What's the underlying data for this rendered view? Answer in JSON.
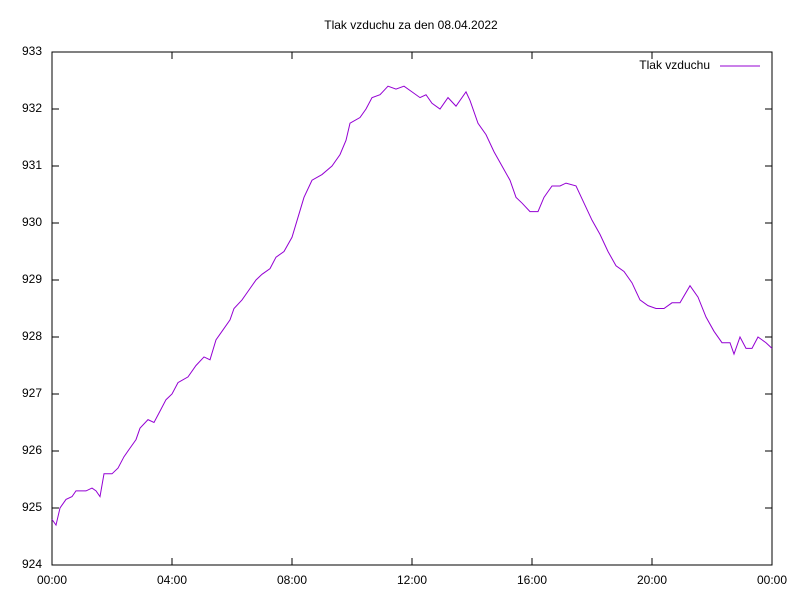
{
  "chart_data": {
    "type": "line",
    "title": "Tlak vzduchu za den 08.04.2022",
    "x": [
      0,
      8,
      16,
      28,
      40,
      48,
      68,
      80,
      88,
      96,
      104,
      120,
      132,
      144,
      156,
      168,
      176,
      192,
      204,
      216,
      228,
      240,
      252,
      272,
      288,
      304,
      316,
      328,
      340,
      356,
      364,
      380,
      392,
      408,
      420,
      436,
      448,
      464,
      480,
      492,
      504,
      520,
      540,
      560,
      576,
      588,
      596,
      616,
      628,
      640,
      656,
      672,
      688,
      704,
      720,
      736,
      748,
      760,
      776,
      792,
      808,
      828,
      836,
      852,
      868,
      884,
      900,
      916,
      928,
      940,
      956,
      972,
      984,
      992,
      1000,
      1016,
      1028,
      1048,
      1064,
      1080,
      1096,
      1112,
      1128,
      1144,
      1160,
      1176,
      1192,
      1208,
      1224,
      1240,
      1256,
      1276,
      1292,
      1308,
      1324,
      1340,
      1356,
      1364,
      1376,
      1388,
      1400,
      1412,
      1428,
      1440
    ],
    "series": [
      {
        "name": "Tlak vzduchu",
        "color": "#9400d3",
        "values": [
          924.8,
          924.7,
          925.0,
          925.15,
          925.2,
          925.3,
          925.3,
          925.35,
          925.3,
          925.2,
          925.6,
          925.6,
          925.7,
          925.9,
          926.05,
          926.2,
          926.4,
          926.55,
          926.5,
          926.7,
          926.9,
          927.0,
          927.2,
          927.3,
          927.5,
          927.65,
          927.6,
          927.95,
          928.1,
          928.3,
          928.5,
          928.65,
          928.8,
          929.0,
          929.1,
          929.2,
          929.4,
          929.5,
          929.75,
          930.1,
          930.45,
          930.75,
          930.85,
          931.0,
          931.2,
          931.45,
          931.75,
          931.85,
          932.0,
          932.2,
          932.25,
          932.4,
          932.35,
          932.4,
          932.3,
          932.2,
          932.25,
          932.1,
          932.0,
          932.2,
          932.05,
          932.3,
          932.15,
          931.75,
          931.55,
          931.25,
          931.0,
          930.75,
          930.45,
          930.35,
          930.2,
          930.2,
          930.45,
          930.55,
          930.65,
          930.65,
          930.7,
          930.65,
          930.35,
          930.05,
          929.8,
          929.5,
          929.25,
          929.15,
          928.95,
          928.65,
          928.55,
          928.5,
          928.5,
          928.6,
          928.6,
          928.9,
          928.7,
          928.35,
          928.1,
          927.9,
          927.9,
          927.7,
          928.0,
          927.8,
          927.8,
          928.0,
          927.9,
          927.8
        ]
      }
    ],
    "xlim": [
      0,
      1440
    ],
    "xticks": [
      {
        "value": 0,
        "label": "00:00"
      },
      {
        "value": 240,
        "label": "04:00"
      },
      {
        "value": 480,
        "label": "08:00"
      },
      {
        "value": 720,
        "label": "12:00"
      },
      {
        "value": 960,
        "label": "16:00"
      },
      {
        "value": 1200,
        "label": "20:00"
      },
      {
        "value": 1440,
        "label": "00:00"
      }
    ],
    "ylim": [
      924,
      933
    ],
    "yticks": [
      924,
      925,
      926,
      927,
      928,
      929,
      930,
      931,
      932,
      933
    ],
    "legend": "top-right"
  }
}
